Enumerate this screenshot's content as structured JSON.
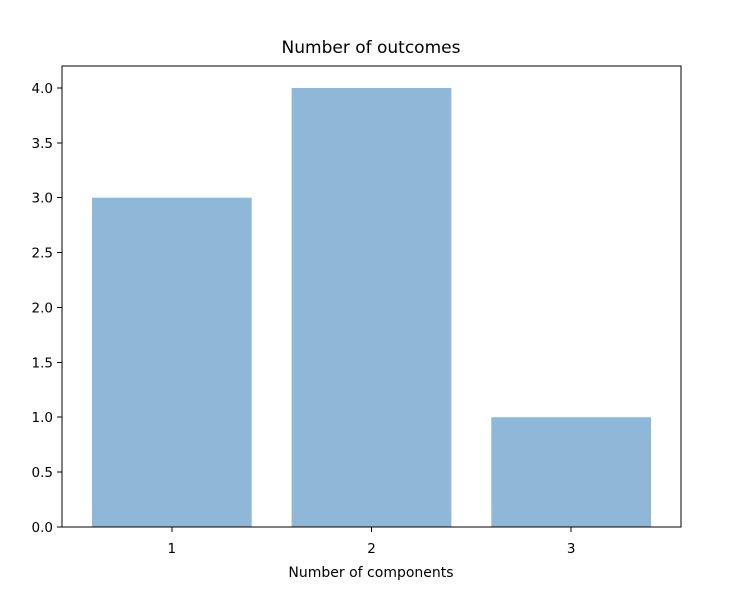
{
  "chart_data": {
    "type": "bar",
    "title": "Number of outcomes",
    "xlabel": "Number of components",
    "ylabel": "",
    "categories": [
      "1",
      "2",
      "3"
    ],
    "values": [
      3,
      4,
      1
    ],
    "ylim": [
      0,
      4.2
    ],
    "yticks": [
      "0.0",
      "0.5",
      "1.0",
      "1.5",
      "2.0",
      "2.5",
      "3.0",
      "3.5",
      "4.0"
    ],
    "bar_color": "#8fb8d8",
    "grid": false,
    "legend": "none"
  }
}
